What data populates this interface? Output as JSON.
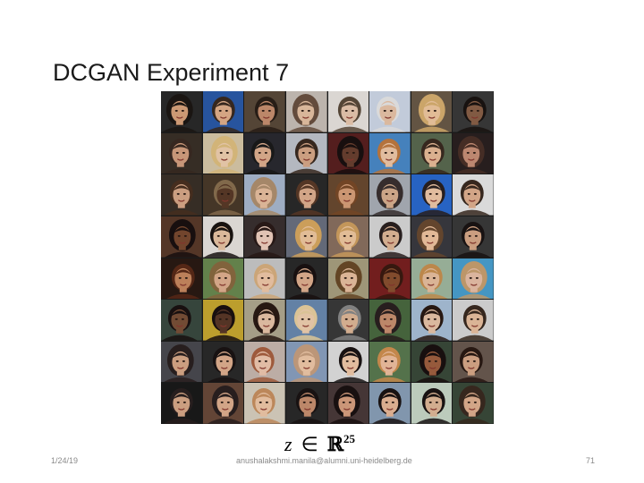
{
  "slide": {
    "title": "DCGAN Experiment 7",
    "formula": {
      "variable": "z",
      "operator": "∈",
      "set": "ℝ",
      "exponent": "25"
    },
    "footer": {
      "date": "1/24/19",
      "email": "anushalakshmi.manila@alumni.uni-heidelberg.de",
      "page_number": "71"
    }
  },
  "sample_grid": {
    "rows": 8,
    "columns": 8,
    "tiles": [
      {
        "bg": "#2a2a2a",
        "skin": "#d9a37c",
        "hair": "#1c1714"
      },
      {
        "bg": "#2a5aa8",
        "skin": "#e2b08c",
        "hair": "#3a2a20"
      },
      {
        "bg": "#5a4a3a",
        "skin": "#c89070",
        "hair": "#2a1f18"
      },
      {
        "bg": "#c8c0b8",
        "skin": "#e6c2a4",
        "hair": "#6a5040"
      },
      {
        "bg": "#e8e4e0",
        "skin": "#e8c8b0",
        "hair": "#5a4a3a"
      },
      {
        "bg": "#cfd8e8",
        "skin": "#e8c4a8",
        "hair": "#e8e8e8"
      },
      {
        "bg": "#6a5a48",
        "skin": "#f0c8a0",
        "hair": "#d8b070"
      },
      {
        "bg": "#3a3a3a",
        "skin": "#8a6048",
        "hair": "#1a1412"
      },
      {
        "bg": "#3a3028",
        "skin": "#d4a080",
        "hair": "#3a2a22"
      },
      {
        "bg": "#d8c8a8",
        "skin": "#f0d0b0",
        "hair": "#e0c080"
      },
      {
        "bg": "#2a2a30",
        "skin": "#e0b090",
        "hair": "#1a1a1a"
      },
      {
        "bg": "#c0c4cc",
        "skin": "#d8a888",
        "hair": "#3a2a20"
      },
      {
        "bg": "#5a2020",
        "skin": "#6a4030",
        "hair": "#1a1010"
      },
      {
        "bg": "#4a8ac8",
        "skin": "#f0c8a8",
        "hair": "#c07a40"
      },
      {
        "bg": "#5a6a50",
        "skin": "#e8bc98",
        "hair": "#3a2a20"
      },
      {
        "bg": "#2a2020",
        "skin": "#c89078",
        "hair": "#4a3028"
      },
      {
        "bg": "#3a3028",
        "skin": "#d8a888",
        "hair": "#4a3020"
      },
      {
        "bg": "#4a3a2a",
        "skin": "#5a3a28",
        "hair": "#8a7050"
      },
      {
        "bg": "#a8b8d0",
        "skin": "#e8c0a0",
        "hair": "#b09070"
      },
      {
        "bg": "#2a2a2a",
        "skin": "#e0b090",
        "hair": "#5a3a28"
      },
      {
        "bg": "#6a4a30",
        "skin": "#d8a07a",
        "hair": "#7a4a28"
      },
      {
        "bg": "#aab0b8",
        "skin": "#d8b090",
        "hair": "#3a3030"
      },
      {
        "bg": "#2a6ad0",
        "skin": "#f0c8a8",
        "hair": "#2a2020"
      },
      {
        "bg": "#e8e8e8",
        "skin": "#e0b090",
        "hair": "#3a2a20"
      },
      {
        "bg": "#5a3a2a",
        "skin": "#7a4a30",
        "hair": "#1a1010"
      },
      {
        "bg": "#e8e4e0",
        "skin": "#e8c4a4",
        "hair": "#1a1412"
      },
      {
        "bg": "#3a3030",
        "skin": "#f0d0c0",
        "hair": "#2a1a18"
      },
      {
        "bg": "#6a7080",
        "skin": "#f0c8a0",
        "hair": "#d8a860"
      },
      {
        "bg": "#8a7060",
        "skin": "#f0c8a0",
        "hair": "#d0a060"
      },
      {
        "bg": "#d8d8d8",
        "skin": "#e0b898",
        "hair": "#2a2020"
      },
      {
        "bg": "#3a3a40",
        "skin": "#f0c4a0",
        "hair": "#6a4a30"
      },
      {
        "bg": "#3a3a3a",
        "skin": "#d8a888",
        "hair": "#1a1414"
      },
      {
        "bg": "#2a1a14",
        "skin": "#c88860",
        "hair": "#5a2a18"
      },
      {
        "bg": "#6a8a50",
        "skin": "#e0b090",
        "hair": "#8a6a40"
      },
      {
        "bg": "#c8c8c8",
        "skin": "#f0c8a8",
        "hair": "#d8b080"
      },
      {
        "bg": "#2a2a2a",
        "skin": "#e0b090",
        "hair": "#1a1212"
      },
      {
        "bg": "#a8a080",
        "skin": "#e8c0a0",
        "hair": "#6a4a28"
      },
      {
        "bg": "#7a2020",
        "skin": "#8a5030",
        "hair": "#3a1a10"
      },
      {
        "bg": "#a0b8a0",
        "skin": "#e8c0a0",
        "hair": "#c89050"
      },
      {
        "bg": "#4aa0d0",
        "skin": "#e8c0a8",
        "hair": "#c8a070"
      },
      {
        "bg": "#3a4a40",
        "skin": "#7a5038",
        "hair": "#1a1212"
      },
      {
        "bg": "#c8a830",
        "skin": "#5a3828",
        "hair": "#1a1010"
      },
      {
        "bg": "#b0a890",
        "skin": "#e8c4a8",
        "hair": "#2a1a14"
      },
      {
        "bg": "#6a8ab0",
        "skin": "#f0d0b0",
        "hair": "#e8d0a0"
      },
      {
        "bg": "#3a3a3a",
        "skin": "#e0b898",
        "hair": "#8a8a8a"
      },
      {
        "bg": "#4a6a40",
        "skin": "#c89070",
        "hair": "#2a2020"
      },
      {
        "bg": "#a8c0d8",
        "skin": "#e8c4a8",
        "hair": "#2a1a14"
      },
      {
        "bg": "#d8d8d8",
        "skin": "#e8c0a0",
        "hair": "#3a2a20"
      },
      {
        "bg": "#4a4a50",
        "skin": "#d8a888",
        "hair": "#2a2020"
      },
      {
        "bg": "#2a2a2a",
        "skin": "#e0b090",
        "hair": "#1a1414"
      },
      {
        "bg": "#c8b8b0",
        "skin": "#f0c8b0",
        "hair": "#a86040"
      },
      {
        "bg": "#8aa0c0",
        "skin": "#f0c8a8",
        "hair": "#c8a080"
      },
      {
        "bg": "#e0e0e0",
        "skin": "#f0c8a8",
        "hair": "#1a1414"
      },
      {
        "bg": "#5a7a50",
        "skin": "#f0c0a0",
        "hair": "#d09050"
      },
      {
        "bg": "#3a4a3a",
        "skin": "#a06040",
        "hair": "#1a1010"
      },
      {
        "bg": "#6a5a50",
        "skin": "#d8a888",
        "hair": "#2a1a14"
      },
      {
        "bg": "#1a1a1a",
        "skin": "#d8a888",
        "hair": "#2a2020"
      },
      {
        "bg": "#6a4a3a",
        "skin": "#e0b090",
        "hair": "#2a2020"
      },
      {
        "bg": "#d8d0c0",
        "skin": "#f0c8a8",
        "hair": "#c89060"
      },
      {
        "bg": "#2a2a2a",
        "skin": "#c89070",
        "hair": "#1a1414"
      },
      {
        "bg": "#4a3a3a",
        "skin": "#d8a080",
        "hair": "#1a1212"
      },
      {
        "bg": "#8aa0b8",
        "skin": "#e8b898",
        "hair": "#1a1414"
      },
      {
        "bg": "#c8d8c8",
        "skin": "#e0b898",
        "hair": "#1a1414"
      },
      {
        "bg": "#3a4a3a",
        "skin": "#e0b090",
        "hair": "#3a2a20"
      }
    ]
  }
}
